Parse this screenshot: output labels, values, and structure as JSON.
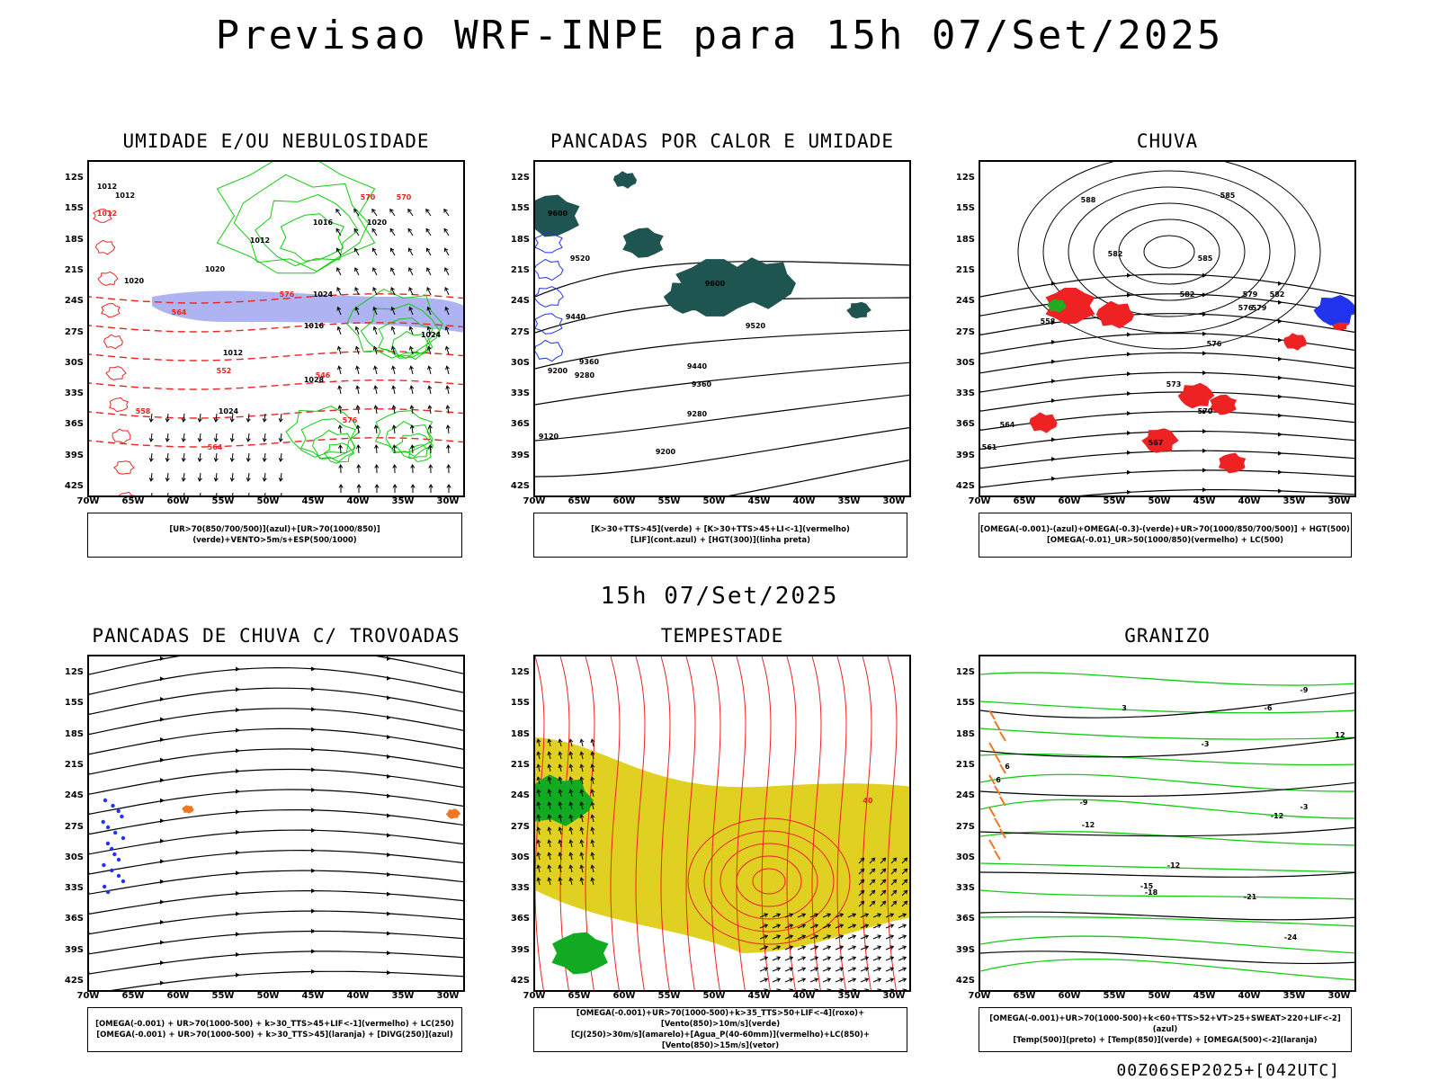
{
  "title": "Previsao WRF-INPE  para 15h 07/Set/2025",
  "subtitle": "15h 07/Set/2025",
  "footer": "00Z06SEP2025+[042UTC]",
  "lat_ticks": [
    "12S",
    "15S",
    "18S",
    "21S",
    "24S",
    "27S",
    "30S",
    "33S",
    "36S",
    "39S",
    "42S"
  ],
  "lon_ticks": [
    "70W",
    "65W",
    "60W",
    "55W",
    "50W",
    "45W",
    "40W",
    "35W",
    "30W"
  ],
  "colors": {
    "red": "#ee2222",
    "green": "#11cc11",
    "blue": "#2233ee",
    "yellow": "#e0d021",
    "teal": "#1e5550",
    "orange": "#ee7722",
    "lavender": "#9aa0ee"
  },
  "panels": [
    {
      "title": "UMIDADE E/OU NEBULOSIDADE",
      "legend": [
        "[UR>70(850/700/500)](azul)+[UR>70(1000/850)](verde)+VENTO>5m/s+ESP(500/1000)"
      ],
      "labels": [
        "1012",
        "1012",
        "1016",
        "1012",
        "1020",
        "1020",
        "1012",
        "1016",
        "1024",
        "1024",
        "1028",
        "1024",
        "1020",
        "1012",
        "570",
        "576",
        "564",
        "552",
        "546",
        "558",
        "564",
        "576",
        "570"
      ]
    },
    {
      "title": "PANCADAS POR CALOR E UMIDADE",
      "legend": [
        "[K>30+TTS>45](verde) + [K>30+TTS>45+LI<-1](vermelho)",
        "[LIF](cont.azul) + [HGT(300)](linha preta)"
      ],
      "labels": [
        "9600",
        "9600",
        "9520",
        "9440",
        "9360",
        "9280",
        "9200",
        "9120",
        "9520",
        "9440",
        "9360",
        "9280",
        "9200"
      ]
    },
    {
      "title": "CHUVA",
      "legend": [
        "[OMEGA(-0.001)-(azul)+OMEGA(-0.3)-(verde)+UR>70(1000/850/700/500)] + HGT(500)",
        "[OMEGA(-0.01)_UR>50(1000/850)(vermelho) + LC(500)"
      ],
      "labels": [
        "588",
        "585",
        "582",
        "585",
        "582",
        "579",
        "576",
        "573",
        "570",
        "567",
        "564",
        "561",
        "558",
        "582",
        "579",
        "576"
      ]
    },
    {
      "title": "PANCADAS DE CHUVA C/ TROVOADAS",
      "legend": [
        "[OMEGA(-0.001) + UR>70(1000-500) + k>30_TTS>45+LIF<-1](vermelho) + LC(250)",
        "[OMEGA(-0.001) + UR>70(1000-500) + k>30_TTS>45](laranja) + [DIVG(250)](azul)"
      ],
      "labels": []
    },
    {
      "title": "TEMPESTADE",
      "legend": [
        "[OMEGA(-0.001)+UR>70(1000-500)+k>35_TTS>50+LIF<-4](roxo)+[Vento(850)>10m/s](verde)",
        "[CJ(250)>30m/s](amarelo)+[Agua_P(40-60mm)](vermelho)+LC(850)+[Vento(850)>15m/s](vetor)"
      ],
      "labels": [
        "40"
      ]
    },
    {
      "title": "GRANIZO",
      "legend": [
        "[OMEGA(-0.001)+UR>70(1000-500)+k<60+TTS>52+VT>25+SWEAT>220+LIF<-2](azul)",
        "[Temp(500)](preto) + [Temp(850)](verde) + [OMEGA(500)<-2](laranja)"
      ],
      "labels": [
        "-9",
        "-12",
        "-15",
        "-12",
        "-18",
        "-21",
        "-24",
        "-9",
        "-6",
        "-3",
        "-12",
        "3",
        "6",
        "12",
        "6",
        "-3"
      ]
    }
  ]
}
